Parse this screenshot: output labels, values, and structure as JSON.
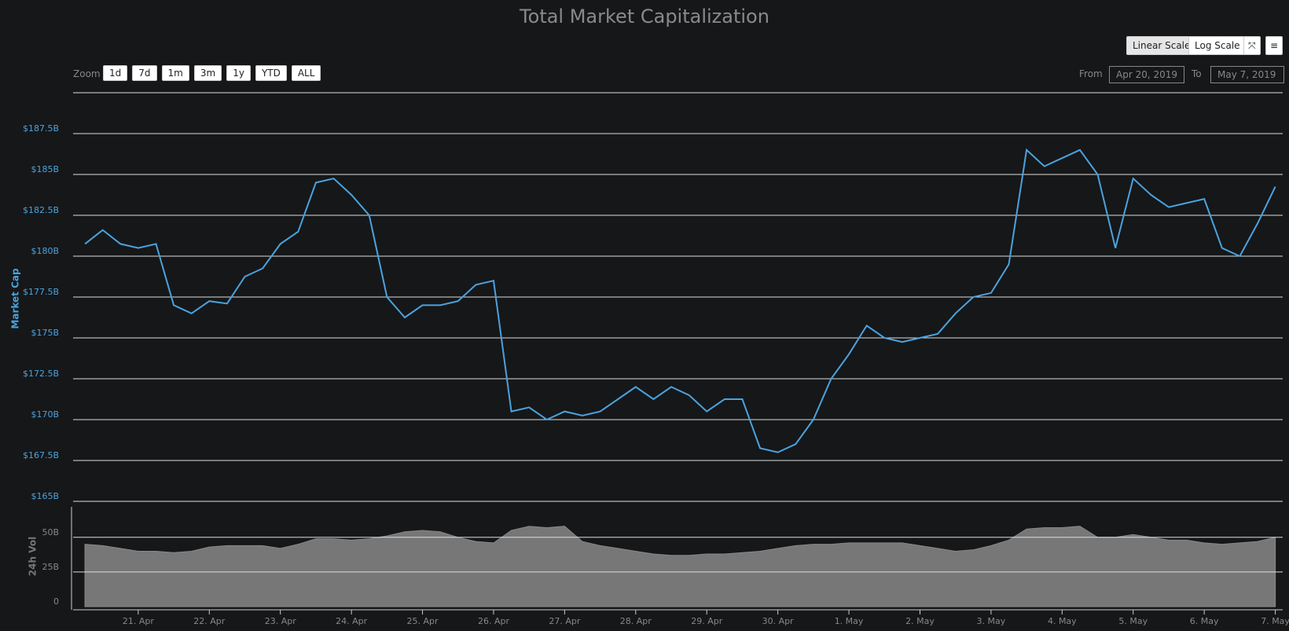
{
  "ui": {
    "zoom_label": "Zoom",
    "zoom_buttons": [
      "1d",
      "7d",
      "1m",
      "3m",
      "1y",
      "YTD",
      "ALL"
    ],
    "scale_buttons": [
      "Linear Scale",
      "Log Scale"
    ],
    "from_label": "From",
    "from_value": "Apr 20, 2019",
    "to_label": "To",
    "to_value": "May 7, 2019"
  },
  "chart_data": {
    "type": "line",
    "title": "Total Market Capitalization",
    "ylabel": "Market Cap",
    "y2label": "24h Vol",
    "x": [
      "2019-04-20 06:00",
      "2019-04-20 12:00",
      "2019-04-20 18:00",
      "2019-04-21 00:00",
      "2019-04-21 06:00",
      "2019-04-21 12:00",
      "2019-04-21 18:00",
      "2019-04-22 00:00",
      "2019-04-22 06:00",
      "2019-04-22 12:00",
      "2019-04-22 18:00",
      "2019-04-23 00:00",
      "2019-04-23 06:00",
      "2019-04-23 12:00",
      "2019-04-23 18:00",
      "2019-04-24 00:00",
      "2019-04-24 06:00",
      "2019-04-24 12:00",
      "2019-04-24 18:00",
      "2019-04-25 00:00",
      "2019-04-25 06:00",
      "2019-04-25 12:00",
      "2019-04-25 18:00",
      "2019-04-26 00:00",
      "2019-04-26 06:00",
      "2019-04-26 12:00",
      "2019-04-26 18:00",
      "2019-04-27 00:00",
      "2019-04-27 06:00",
      "2019-04-27 12:00",
      "2019-04-27 18:00",
      "2019-04-28 00:00",
      "2019-04-28 06:00",
      "2019-04-28 12:00",
      "2019-04-28 18:00",
      "2019-04-29 00:00",
      "2019-04-29 06:00",
      "2019-04-29 12:00",
      "2019-04-29 18:00",
      "2019-04-30 00:00",
      "2019-04-30 06:00",
      "2019-04-30 12:00",
      "2019-04-30 18:00",
      "2019-05-01 00:00",
      "2019-05-01 06:00",
      "2019-05-01 12:00",
      "2019-05-01 18:00",
      "2019-05-02 00:00",
      "2019-05-02 06:00",
      "2019-05-02 12:00",
      "2019-05-02 18:00",
      "2019-05-03 00:00",
      "2019-05-03 06:00",
      "2019-05-03 12:00",
      "2019-05-03 18:00",
      "2019-05-04 00:00",
      "2019-05-04 06:00",
      "2019-05-04 12:00",
      "2019-05-04 18:00",
      "2019-05-05 00:00",
      "2019-05-05 06:00",
      "2019-05-05 12:00",
      "2019-05-05 18:00",
      "2019-05-06 00:00",
      "2019-05-06 06:00",
      "2019-05-06 12:00",
      "2019-05-06 18:00",
      "2019-05-07 00:00"
    ],
    "series": [
      {
        "color": "#4aa3df",
        "values": [
          180.75,
          181.6,
          180.75,
          180.5,
          180.75,
          177,
          176.5,
          177.25,
          177.1,
          178.75,
          179.25,
          180.75,
          181.5,
          184.5,
          184.75,
          183.75,
          182.5,
          177.5,
          176.25,
          177,
          177,
          177.25,
          178.25,
          178.5,
          170.5,
          170.75,
          170,
          170.5,
          170.25,
          170.5,
          171.25,
          172,
          171.25,
          172,
          171.5,
          170.5,
          171.25,
          171.25,
          168.25,
          168,
          168.5,
          170,
          172.5,
          174,
          175.75,
          175,
          174.75,
          175,
          175.25,
          176.5,
          177.5,
          177.75,
          179.5,
          186.5,
          185.5,
          186,
          186.5,
          185,
          180.5,
          184.75,
          183.75,
          183,
          183.25,
          183.5,
          180.5,
          180,
          182,
          184.25
        ]
      },
      {
        "color": "#777777",
        "axis": "y2",
        "values": [
          45,
          44,
          42,
          40,
          40,
          39,
          40,
          43,
          44,
          44,
          44,
          42,
          45,
          49,
          49,
          48,
          49,
          51,
          54,
          55,
          54,
          50,
          47,
          46,
          55,
          58,
          57,
          58,
          47,
          44,
          42,
          40,
          38,
          37,
          37,
          38,
          38,
          39,
          40,
          42,
          44,
          45,
          45,
          46,
          46,
          46,
          46,
          44,
          42,
          40,
          41,
          44,
          48,
          56,
          57,
          57,
          58,
          50,
          50,
          52,
          50,
          48,
          48,
          46,
          45,
          46,
          47,
          50
        ]
      }
    ],
    "xlim": [
      "2019-04-20 02:00",
      "2019-05-07 02:30"
    ],
    "xticks": [
      {
        "value": "2019-04-21 00:00",
        "label": "21. Apr"
      },
      {
        "value": "2019-04-22 00:00",
        "label": "22. Apr"
      },
      {
        "value": "2019-04-23 00:00",
        "label": "23. Apr"
      },
      {
        "value": "2019-04-24 00:00",
        "label": "24. Apr"
      },
      {
        "value": "2019-04-25 00:00",
        "label": "25. Apr"
      },
      {
        "value": "2019-04-26 00:00",
        "label": "26. Apr"
      },
      {
        "value": "2019-04-27 00:00",
        "label": "27. Apr"
      },
      {
        "value": "2019-04-28 00:00",
        "label": "28. Apr"
      },
      {
        "value": "2019-04-29 00:00",
        "label": "29. Apr"
      },
      {
        "value": "2019-04-30 00:00",
        "label": "30. Apr"
      },
      {
        "value": "2019-05-01 00:00",
        "label": "1. May"
      },
      {
        "value": "2019-05-02 00:00",
        "label": "2. May"
      },
      {
        "value": "2019-05-03 00:00",
        "label": "3. May"
      },
      {
        "value": "2019-05-04 00:00",
        "label": "4. May"
      },
      {
        "value": "2019-05-05 00:00",
        "label": "5. May"
      },
      {
        "value": "2019-05-06 00:00",
        "label": "6. May"
      },
      {
        "value": "2019-05-07 00:00",
        "label": "7. May"
      }
    ],
    "ylim": [
      165,
      190
    ],
    "yticks": [
      {
        "value": 165,
        "label": "$165B"
      },
      {
        "value": 167.5,
        "label": "$167.5B"
      },
      {
        "value": 170,
        "label": "$170B"
      },
      {
        "value": 172.5,
        "label": "$172.5B"
      },
      {
        "value": 175,
        "label": "$175B"
      },
      {
        "value": 177.5,
        "label": "$177.5B"
      },
      {
        "value": 180,
        "label": "$180B"
      },
      {
        "value": 182.5,
        "label": "$182.5B"
      },
      {
        "value": 185,
        "label": "$185B"
      },
      {
        "value": 187.5,
        "label": "$187.5B"
      }
    ],
    "y2lim": [
      0,
      72
    ],
    "y2ticks": [
      0,
      {
        "value": 25,
        "label": "25B"
      },
      {
        "value": 50,
        "label": "50B"
      }
    ],
    "grid": true
  }
}
